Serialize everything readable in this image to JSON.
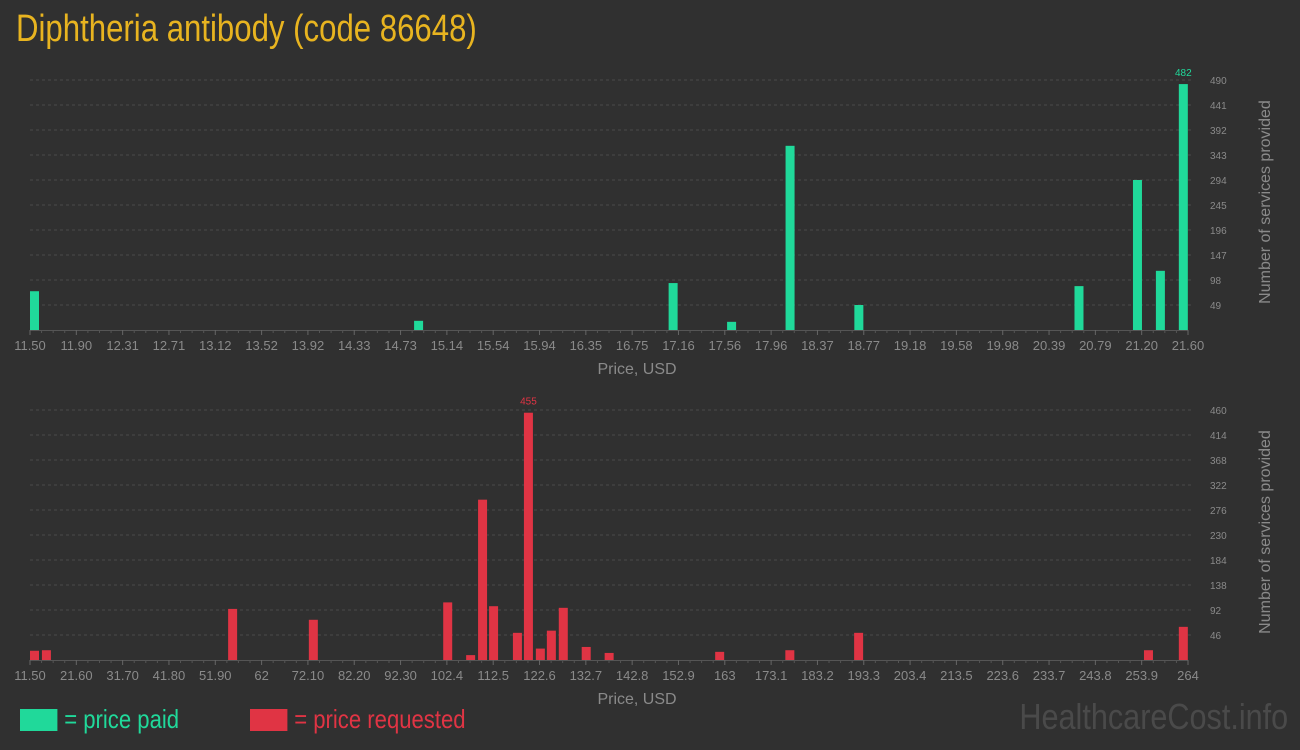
{
  "title": "Diphtheria antibody (code 86648)",
  "colors": {
    "background": "#303030",
    "paid": "#20d99a",
    "requested": "#e03444",
    "title": "#e8b420"
  },
  "legend": {
    "paid": "= price paid",
    "requested": "= price requested"
  },
  "watermark": "HealthcareCost.info",
  "chart_data": [
    {
      "type": "bar",
      "series_name": "price paid",
      "xlabel": "Price, USD",
      "ylabel": "Number of services provided",
      "xlim": [
        11.5,
        21.6
      ],
      "ylim": [
        0,
        490
      ],
      "grid": true,
      "x_ticks": [
        "11.50",
        "11.90",
        "12.31",
        "12.71",
        "13.12",
        "13.52",
        "13.92",
        "14.33",
        "14.73",
        "15.14",
        "15.54",
        "15.94",
        "16.35",
        "16.75",
        "17.16",
        "17.56",
        "17.96",
        "18.37",
        "18.77",
        "19.18",
        "19.58",
        "19.98",
        "20.39",
        "20.79",
        "21.20",
        "21.60"
      ],
      "y_ticks": [
        49,
        98,
        147,
        196,
        245,
        294,
        343,
        392,
        441,
        490
      ],
      "x": [
        11.5,
        14.85,
        17.07,
        17.58,
        18.09,
        18.69,
        20.61,
        21.12,
        21.32,
        21.52
      ],
      "values": [
        76,
        18,
        92,
        16,
        361,
        49,
        86,
        294,
        116,
        482
      ],
      "max_label": "482"
    },
    {
      "type": "bar",
      "series_name": "price requested",
      "xlabel": "Price, USD",
      "ylabel": "Number of services provided",
      "xlim": [
        11.5,
        264
      ],
      "ylim": [
        0,
        460
      ],
      "grid": true,
      "x_ticks": [
        "11.50",
        "21.60",
        "31.70",
        "41.80",
        "51.90",
        "62",
        "72.10",
        "82.20",
        "92.30",
        "102.4",
        "112.5",
        "122.6",
        "132.7",
        "142.8",
        "152.9",
        "163",
        "173.1",
        "183.2",
        "193.3",
        "203.4",
        "213.5",
        "223.6",
        "233.7",
        "243.8",
        "253.9",
        "264"
      ],
      "y_ticks": [
        46,
        92,
        138,
        184,
        230,
        276,
        322,
        368,
        414,
        460
      ],
      "x": [
        11.5,
        14.1,
        54.7,
        72.3,
        101.6,
        106.6,
        109.2,
        111.6,
        116.8,
        119.2,
        121.8,
        124.2,
        126.8,
        131.8,
        136.8,
        160.9,
        176.2,
        191.2,
        254.4,
        262
      ],
      "values": [
        17,
        18,
        94,
        74,
        106,
        9,
        295,
        99,
        50,
        455,
        21,
        54,
        96,
        24,
        13,
        15,
        18,
        50,
        18,
        61
      ],
      "max_label": "455"
    }
  ]
}
